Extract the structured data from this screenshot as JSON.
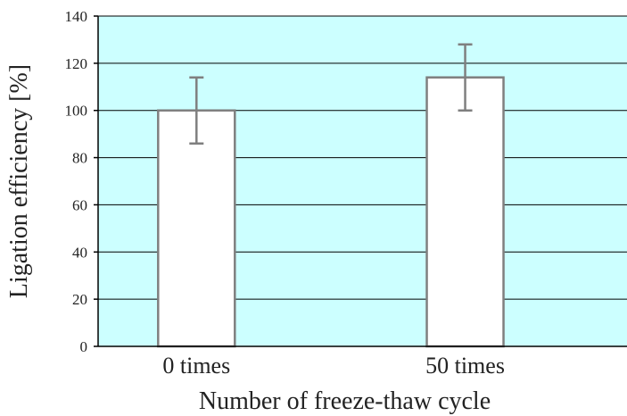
{
  "chart_data": {
    "type": "bar",
    "categories": [
      "0 times",
      "50 times"
    ],
    "values": [
      100,
      114
    ],
    "error_bars": [
      14,
      14
    ],
    "xlabel": "Number of freeze-thaw cycle",
    "ylabel": "Ligation efficiency [%]",
    "ylim": [
      0,
      140
    ],
    "yticks": [
      0,
      20,
      40,
      60,
      80,
      100,
      120,
      140
    ],
    "grid": true,
    "legend": "none",
    "colors": {
      "plot_background": "#ccffff",
      "bar_fill": "#ffffff",
      "bar_stroke": "#7f7f7f",
      "error_bar": "#7f7f7f",
      "gridline": "#000000",
      "axis": "#000000"
    }
  }
}
